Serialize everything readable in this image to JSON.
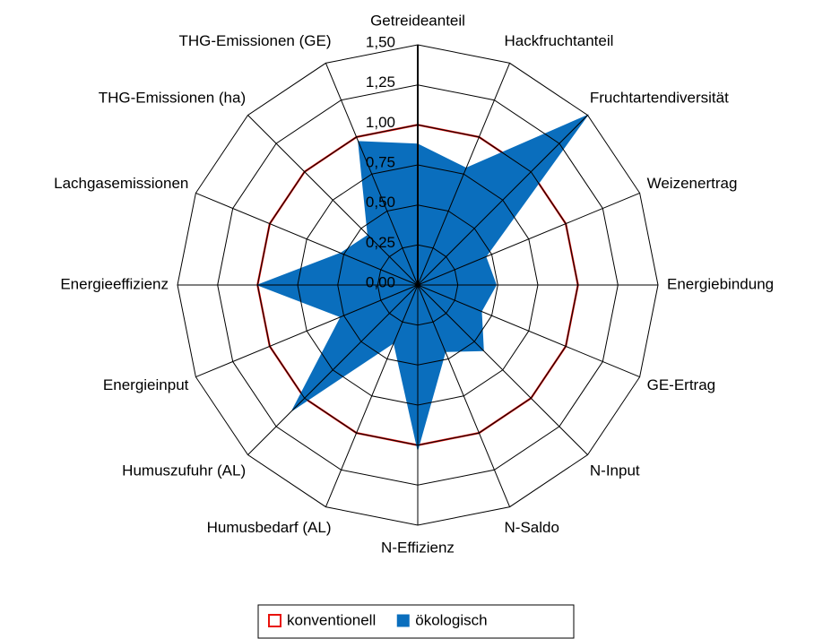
{
  "chart_data": {
    "type": "radar",
    "categories": [
      "Getreideanteil",
      "Hackfruchtanteil",
      "Fruchtartendiversität",
      "Weizenertrag",
      "Energiebindung",
      "GE-Ertrag",
      "N-Input",
      "N-Saldo",
      "N-Effizienz",
      "Humusbedarf (AL)",
      "Humuszufuhr (AL)",
      "Energieinput",
      "Energieeffizienz",
      "Lachgasemissionen",
      "THG-Emissionen (ha)",
      "THG-Emissionen (GE)"
    ],
    "series": [
      {
        "name": "konventionell",
        "color": "#e8120c",
        "fill": false,
        "values": [
          1,
          1,
          1,
          1,
          1,
          1,
          1,
          1,
          1,
          1,
          1,
          1,
          1,
          1,
          1,
          1
        ]
      },
      {
        "name": "ökologisch",
        "color": "#0a6ebd",
        "fill": true,
        "values": [
          0.88,
          0.79,
          1.5,
          0.46,
          0.49,
          0.43,
          0.58,
          0.45,
          1.03,
          0.39,
          1.11,
          0.52,
          1.0,
          0.52,
          0.44,
          0.97
        ]
      }
    ],
    "ylim": [
      0,
      1.5
    ],
    "yticks": [
      {
        "value": 0,
        "label": "0,00"
      },
      {
        "value": 0.25,
        "label": "0,25"
      },
      {
        "value": 0.5,
        "label": "0,50"
      },
      {
        "value": 0.75,
        "label": "0,75"
      },
      {
        "value": 1,
        "label": "1,00"
      },
      {
        "value": 1.25,
        "label": "1,25"
      },
      {
        "value": 1.5,
        "label": "1,50"
      }
    ],
    "legend": "bottom"
  }
}
